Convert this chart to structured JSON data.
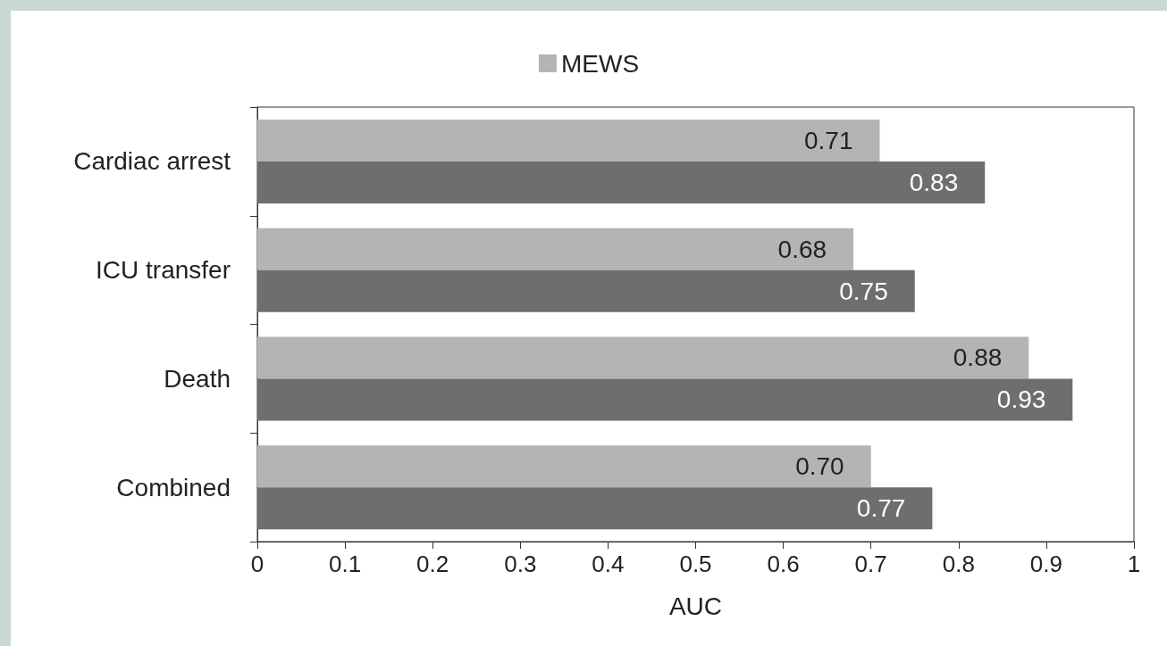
{
  "chart_data": {
    "type": "bar",
    "orientation": "horizontal",
    "xlabel": "AUC",
    "categories": [
      "Cardiac arrest",
      "ICU transfer",
      "Death",
      "Combined"
    ],
    "series": [
      {
        "name": "MEWS",
        "color": "#b4b4b4",
        "values": [
          0.71,
          0.68,
          0.88,
          0.7
        ],
        "value_labels": [
          "0.71",
          "0.68",
          "0.88",
          "0.70"
        ]
      },
      {
        "color": "#6e6e71",
        "values": [
          0.83,
          0.75,
          0.93,
          0.77
        ],
        "value_labels": [
          "0.83",
          "0.75",
          "0.93",
          "0.77"
        ]
      }
    ],
    "xlim": [
      0,
      1
    ],
    "xticks": [
      0,
      0.1,
      0.2,
      0.3,
      0.4,
      0.5,
      0.6,
      0.7,
      0.8,
      0.9,
      1
    ],
    "grid": false,
    "legend": "top"
  }
}
